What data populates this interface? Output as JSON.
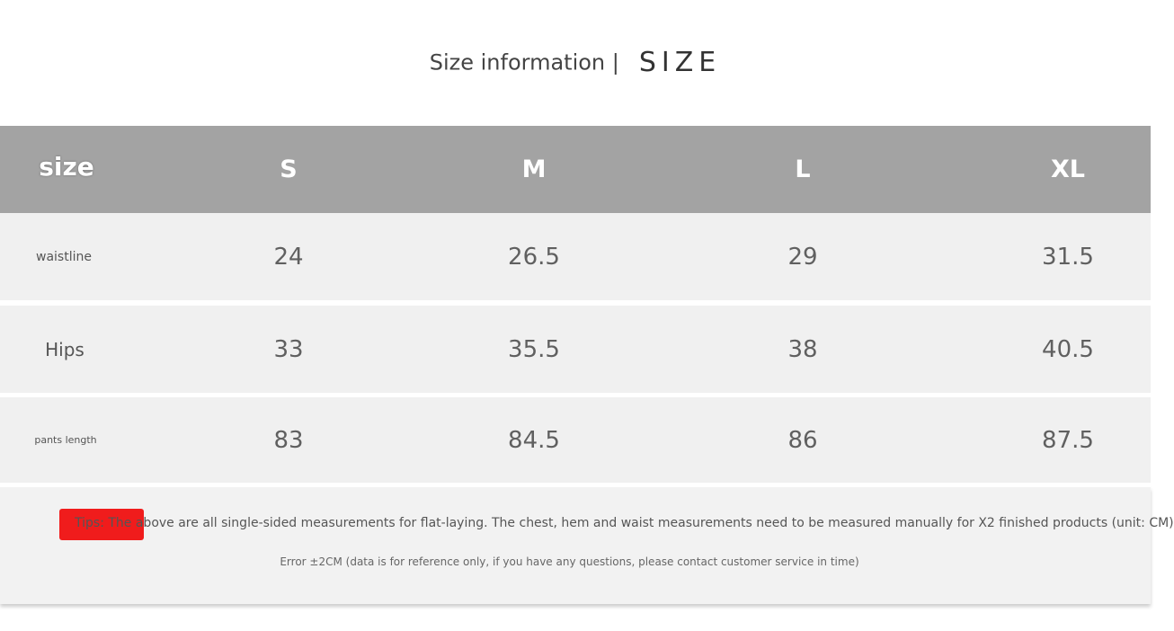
{
  "title": {
    "label": "Size information |",
    "size_word": "SIZE"
  },
  "table": {
    "header": [
      "size",
      "S",
      "M",
      "L",
      "XL"
    ],
    "rows": [
      {
        "label": "waistline",
        "values": [
          "24",
          "26.5",
          "29",
          "31.5"
        ]
      },
      {
        "label": "Hips",
        "values": [
          "33",
          "35.5",
          "38",
          "40.5"
        ]
      },
      {
        "label": "pants length",
        "values": [
          "83",
          "84.5",
          "86",
          "87.5"
        ]
      }
    ]
  },
  "notes": {
    "tips": "Tips: The above are all single-sided measurements for flat-laying. The chest, hem and waist measurements need to be measured manually for X2 finished products (unit: CM)",
    "error": "Error ±2CM (data is for reference only, if you have any questions, please contact customer service in time)"
  },
  "colors": {
    "header_bg": "#a3a3a3",
    "row_bg": "#f0f0f0",
    "tips_badge": "#f01c1c"
  }
}
